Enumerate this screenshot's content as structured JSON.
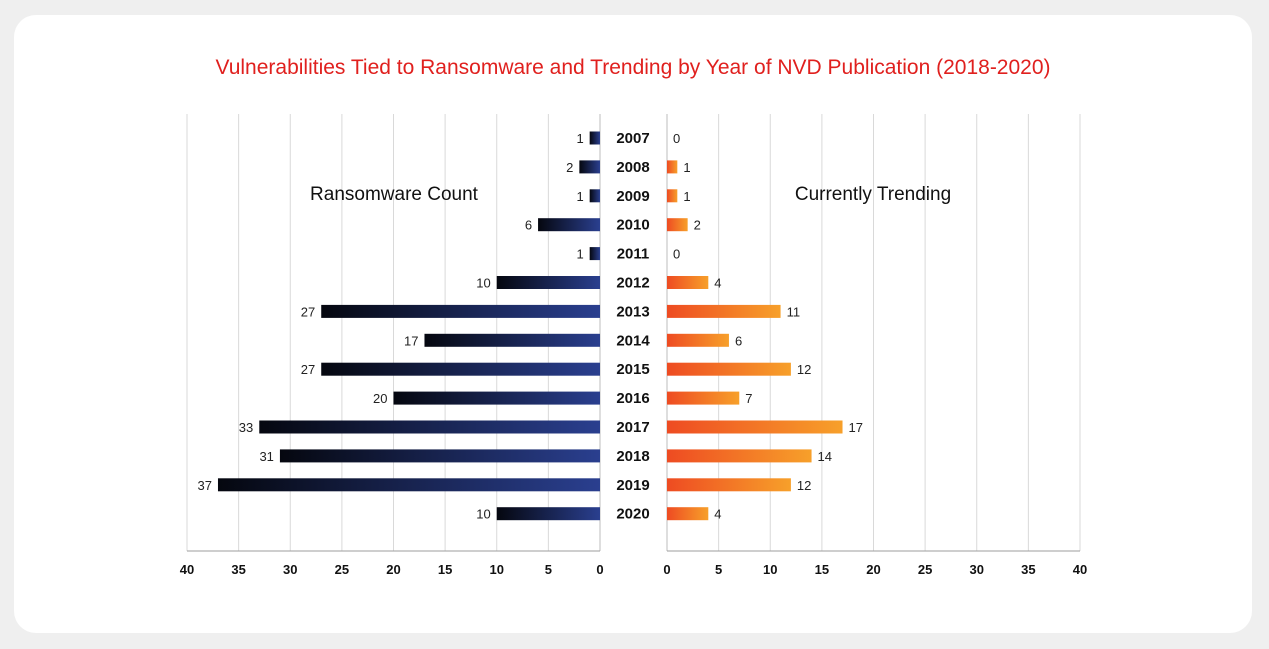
{
  "chart_data": {
    "type": "bar",
    "title": "Vulnerabilities Tied to Ransomware and Trending by Year of NVD Publication (2018-2020)",
    "categories": [
      "2007",
      "2008",
      "2009",
      "2010",
      "2011",
      "2012",
      "2013",
      "2014",
      "2015",
      "2016",
      "2017",
      "2018",
      "2019",
      "2020"
    ],
    "series": [
      {
        "name": "Ransomware Count",
        "side": "left",
        "values": [
          1,
          2,
          1,
          6,
          1,
          10,
          27,
          17,
          27,
          20,
          33,
          31,
          37,
          10
        ],
        "color_from": "#2a3f8f",
        "color_to": "#05070f"
      },
      {
        "name": "Currently Trending",
        "side": "right",
        "values": [
          0,
          1,
          1,
          2,
          0,
          4,
          11,
          6,
          12,
          7,
          17,
          14,
          12,
          4
        ],
        "color_from": "#ee4b22",
        "color_to": "#f7a02a"
      }
    ],
    "xlim": [
      0,
      40
    ],
    "xticks": [
      "0",
      "5",
      "10",
      "15",
      "20",
      "25",
      "30",
      "35",
      "40"
    ],
    "grid": true,
    "colors": {
      "title": "#e0201e",
      "grid": "#d9d9d9"
    }
  }
}
